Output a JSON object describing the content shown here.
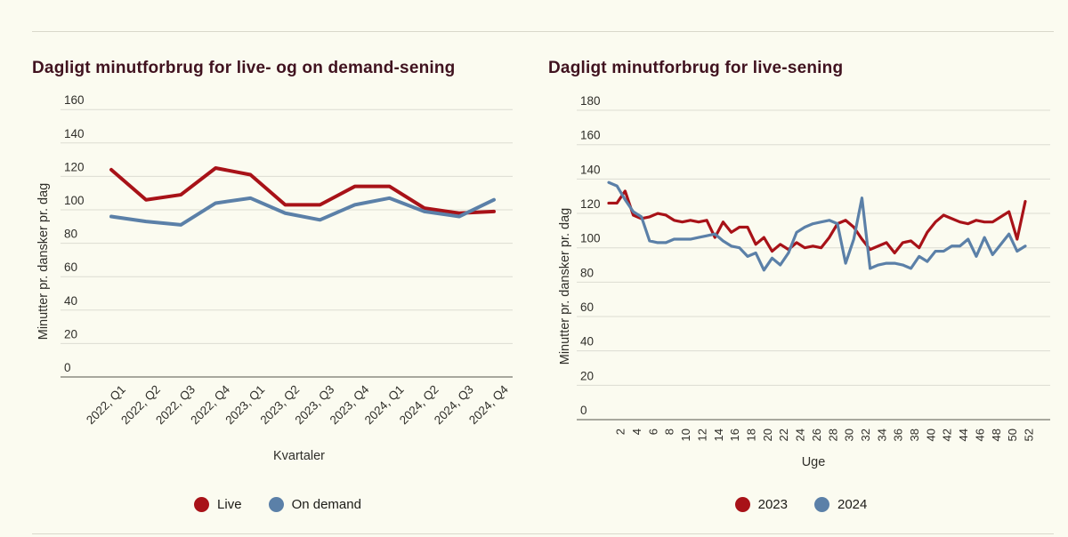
{
  "page": {
    "background": "#fbfbf0",
    "title_color": "#40121f",
    "grid_color": "#dcdcd2",
    "axisline_color": "#56544c",
    "tick_color": "#2f2e29"
  },
  "chart_data": [
    {
      "type": "line",
      "title": "Dagligt minutforbrug for live- og on demand-sening",
      "xlabel": "Kvartaler",
      "ylabel": "Minutter pr. dansker pr. dag",
      "ylim": [
        0,
        160
      ],
      "yticks": [
        0,
        20,
        40,
        60,
        80,
        100,
        120,
        140,
        160
      ],
      "grid": true,
      "legend_position": "bottom",
      "categories": [
        "2022, Q1",
        "2022, Q2",
        "2022, Q3",
        "2022, Q4",
        "2023, Q1",
        "2023, Q2",
        "2023, Q3",
        "2023, Q4",
        "2024, Q1",
        "2024, Q2",
        "2024, Q3",
        "2024, Q4"
      ],
      "series": [
        {
          "name": "Live",
          "color": "#a81218",
          "values": [
            124,
            106,
            109,
            125,
            121,
            103,
            103,
            114,
            114,
            101,
            98,
            99
          ]
        },
        {
          "name": "On demand",
          "color": "#5b80a8",
          "values": [
            96,
            93,
            91,
            104,
            107,
            98,
            94,
            103,
            107,
            99,
            96,
            106
          ]
        }
      ]
    },
    {
      "type": "line",
      "title": "Dagligt minutforbrug for live-sening",
      "xlabel": "Uge",
      "ylabel": "Minutter pr. dansker pr. dag",
      "ylim": [
        0,
        180
      ],
      "yticks": [
        0,
        20,
        40,
        60,
        80,
        100,
        120,
        140,
        160,
        180
      ],
      "grid": true,
      "legend_position": "bottom",
      "categories": [
        1,
        2,
        3,
        4,
        5,
        6,
        7,
        8,
        9,
        10,
        11,
        12,
        13,
        14,
        15,
        16,
        17,
        18,
        19,
        20,
        21,
        22,
        23,
        24,
        25,
        26,
        27,
        28,
        29,
        30,
        31,
        32,
        33,
        34,
        35,
        36,
        37,
        38,
        39,
        40,
        41,
        42,
        43,
        44,
        45,
        46,
        47,
        48,
        49,
        50,
        51,
        52
      ],
      "xtick_labels": [
        2,
        4,
        6,
        8,
        10,
        12,
        14,
        16,
        18,
        20,
        22,
        24,
        26,
        28,
        30,
        32,
        34,
        36,
        38,
        40,
        42,
        44,
        46,
        48,
        50,
        52
      ],
      "series": [
        {
          "name": "2023",
          "color": "#a81218",
          "values": [
            126,
            126,
            133,
            119,
            117,
            118,
            120,
            119,
            116,
            115,
            116,
            115,
            116,
            106,
            115,
            109,
            112,
            112,
            102,
            106,
            98,
            102,
            99,
            103,
            100,
            101,
            100,
            106,
            114,
            116,
            112,
            105,
            99,
            101,
            103,
            97,
            103,
            104,
            100,
            109,
            115,
            119,
            117,
            115,
            114,
            116,
            115,
            115,
            118,
            121,
            105,
            127
          ]
        },
        {
          "name": "2024",
          "color": "#5b80a8",
          "values": [
            138,
            136,
            128,
            121,
            118,
            104,
            103,
            103,
            105,
            105,
            105,
            106,
            107,
            108,
            104,
            101,
            100,
            95,
            97,
            87,
            94,
            90,
            97,
            109,
            112,
            114,
            115,
            116,
            114,
            91,
            105,
            129,
            88,
            90,
            91,
            91,
            90,
            88,
            95,
            92,
            98,
            98,
            101,
            101,
            105,
            95,
            106,
            96,
            102,
            108,
            98,
            101
          ]
        }
      ]
    }
  ]
}
